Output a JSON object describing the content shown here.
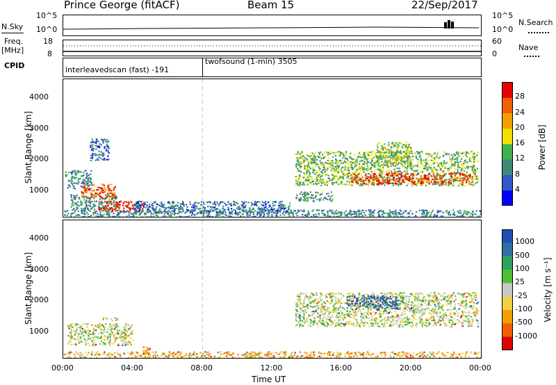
{
  "header": {
    "station": "Prince George (fitACF)",
    "beam": "Beam 15",
    "date": "22/Sep/2017"
  },
  "panels": {
    "nsky_label": "N.Sky",
    "nsearch_label": "N.Search",
    "freq_label": "Freq.",
    "freq_unit": "[MHz]",
    "nave_label": "Nave",
    "cpid_label": "CPID",
    "nsky_ticks": [
      "10^5",
      "10^0"
    ],
    "nsearch_ticks": [
      "10^5",
      "10^0"
    ],
    "freq_ticks": [
      "18",
      "8"
    ],
    "nave_ticks": [
      "60",
      "0"
    ]
  },
  "cpid": [
    {
      "label": "interleavedscan (fast) -191",
      "start_hour": 0
    },
    {
      "label": "twofsound (1-min) 3505",
      "start_hour": 8
    }
  ],
  "axes": {
    "ylabel": "Slant Range [km]",
    "xlabel": "Time UT",
    "yticks": [
      "1000",
      "2000",
      "3000",
      "4000"
    ],
    "xticks": [
      "00:00",
      "04:00",
      "08:00",
      "12:00",
      "16:00",
      "20:00",
      "00:00"
    ]
  },
  "chart_data": [
    {
      "type": "heatmap",
      "title": "Power [dB]",
      "x_range_hours": [
        0,
        24
      ],
      "ylim_km": [
        180,
        4600
      ],
      "colorbar": {
        "label": "Power [dB]",
        "ticks": [
          "4",
          "8",
          "12",
          "16",
          "20",
          "24",
          "28"
        ],
        "colors": [
          "#0000ff",
          "#3058c8",
          "#408878",
          "#40b050",
          "#f0e000",
          "#f0a000",
          "#f06000",
          "#e80000"
        ]
      },
      "echo_regions": [
        {
          "t0": 0.1,
          "t1": 1.6,
          "r0": 1100,
          "r1": 1700,
          "level": 0.3
        },
        {
          "t0": 0.4,
          "t1": 3.2,
          "r0": 400,
          "r1": 900,
          "level": 0.35
        },
        {
          "t0": 1.0,
          "t1": 3.0,
          "r0": 800,
          "r1": 1250,
          "level": 0.85
        },
        {
          "t0": 2.0,
          "t1": 4.6,
          "r0": 370,
          "r1": 700,
          "level": 0.95
        },
        {
          "t0": 1.5,
          "t1": 2.6,
          "r0": 2000,
          "r1": 2700,
          "level": 0.25
        },
        {
          "t0": 0.0,
          "t1": 24,
          "r0": 180,
          "r1": 420,
          "level": 0.3
        },
        {
          "t0": 4.0,
          "t1": 13,
          "r0": 300,
          "r1": 700,
          "level": 0.25
        },
        {
          "t0": 13.3,
          "t1": 23.8,
          "r0": 1200,
          "r1": 2300,
          "level": 0.45
        },
        {
          "t0": 16.5,
          "t1": 23.5,
          "r0": 1250,
          "r1": 1600,
          "level": 0.9
        },
        {
          "t0": 13.3,
          "t1": 15.5,
          "r0": 700,
          "r1": 1000,
          "level": 0.35
        },
        {
          "t0": 18.0,
          "t1": 20.0,
          "r0": 1800,
          "r1": 2600,
          "level": 0.5
        }
      ]
    },
    {
      "type": "heatmap",
      "title": "Velocity [m s-1]",
      "x_range_hours": [
        0,
        24
      ],
      "ylim_km": [
        180,
        4600
      ],
      "colorbar": {
        "label": "Velocity [m s⁻¹]",
        "ticks": [
          "1000",
          "500",
          "100",
          "25",
          "-25",
          "-100",
          "-500",
          "-1000"
        ],
        "colors": [
          "#2050b0",
          "#3070a0",
          "#30a060",
          "#50c030",
          "#c8c8c4",
          "#f0d040",
          "#f0a000",
          "#f06000",
          "#e00000"
        ]
      },
      "echo_regions": [
        {
          "t0": 0.2,
          "t1": 4.0,
          "r0": 600,
          "r1": 1300,
          "level": 0.5
        },
        {
          "t0": 0.0,
          "t1": 24,
          "r0": 180,
          "r1": 400,
          "level": 0.7
        },
        {
          "t0": 4.5,
          "t1": 5.0,
          "r0": 300,
          "r1": 550,
          "level": 0.8
        },
        {
          "t0": 13.3,
          "t1": 23.8,
          "r0": 1200,
          "r1": 2300,
          "level": 0.5
        },
        {
          "t0": 16.2,
          "t1": 19.5,
          "r0": 1750,
          "r1": 2200,
          "level": 0.05
        },
        {
          "t0": 2.2,
          "t1": 3.2,
          "r0": 1400,
          "r1": 1500,
          "level": 0.5
        }
      ]
    }
  ]
}
